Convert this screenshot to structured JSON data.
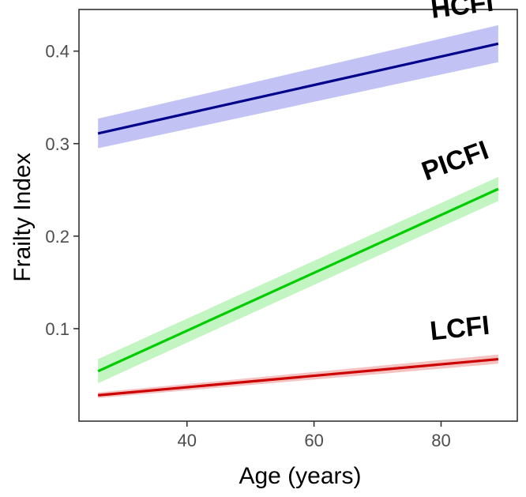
{
  "chart_data": {
    "type": "line",
    "title": "",
    "xlabel": "Age (years)",
    "ylabel": "Frailty Index",
    "xlim": [
      23,
      92
    ],
    "ylim": [
      0.0,
      0.445
    ],
    "xticks": [
      40,
      60,
      80
    ],
    "yticks": [
      0.1,
      0.2,
      0.3,
      0.4
    ],
    "xtick_labels": [
      "40",
      "60",
      "80"
    ],
    "ytick_labels": [
      "0.1",
      "0.2",
      "0.3",
      "0.4"
    ],
    "grid": false,
    "legend": "none (direct labels)",
    "series": [
      {
        "name": "HCFI",
        "color": "#00008B",
        "band_color": "#9999EE",
        "x": [
          26,
          89
        ],
        "values": [
          0.311,
          0.408
        ],
        "ci_lower": [
          0.295,
          0.388
        ],
        "ci_upper": [
          0.327,
          0.428
        ]
      },
      {
        "name": "PICFI",
        "color": "#00CC00",
        "band_color": "#99EE99",
        "x": [
          26,
          89
        ],
        "values": [
          0.054,
          0.251
        ],
        "ci_lower": [
          0.041,
          0.238
        ],
        "ci_upper": [
          0.067,
          0.264
        ]
      },
      {
        "name": "LCFI",
        "color": "#CC0000",
        "band_color": "#EE9999",
        "x": [
          26,
          89
        ],
        "values": [
          0.028,
          0.067
        ],
        "ci_lower": [
          0.025,
          0.062
        ],
        "ci_upper": [
          0.031,
          0.072
        ]
      }
    ]
  }
}
